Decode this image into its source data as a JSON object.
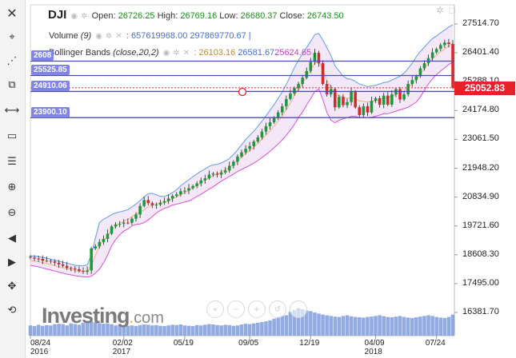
{
  "symbol": "DJI",
  "ohlc": {
    "open_label": "Open:",
    "open": "26726.25",
    "high_label": "High:",
    "high": "26769.16",
    "low_label": "Low:",
    "low": "26680.37",
    "close_label": "Close:",
    "close": "26743.50"
  },
  "volume": {
    "name": "Volume",
    "param": "(9)",
    "values": ": 657619968.00 297869770.67 |"
  },
  "bollinger": {
    "name": "Bollinger Bands",
    "params": "(close,20,2)",
    "v1": ": 26103.16",
    "v2": "26581.67",
    "v3": "25624.65",
    "sep": "|"
  },
  "hlines": [
    {
      "label": "2608",
      "value": 26081
    },
    {
      "label": "25525.85",
      "value": 25525.85
    },
    {
      "label": "24910.06",
      "value": 24910.06
    },
    {
      "label": "23900.10",
      "value": 23900.1
    }
  ],
  "current_price": "25052.83",
  "watermark": {
    "main": "Investing",
    "dot": ".",
    "suffix": "com"
  },
  "colors": {
    "upper_band": "#5b9bf0",
    "lower_band": "#d94fd9",
    "band_fill": "#ecd9f3",
    "hline": "#4b4fa8",
    "price_tag": "#e8202a",
    "bull": "#1a9a3a",
    "bear": "#d62a2a",
    "volume": "#6e8ed8"
  },
  "icons": [
    "close-icon",
    "crosshair-icon",
    "line-tools-icon",
    "pattern-icon",
    "measure-icon",
    "rectangle-icon",
    "fib-icon",
    "zoom-in-icon",
    "zoom-out-icon",
    "back-icon",
    "forward-icon",
    "pan-icon",
    "reset-icon"
  ],
  "chart_data": {
    "type": "candlestick",
    "ylim": [
      16000,
      27900
    ],
    "yticks": [
      "27514.70",
      "26401.40",
      "25288.10",
      "24174.80",
      "23061.50",
      "21948.20",
      "20834.90",
      "19721.60",
      "18608.30",
      "17495.00",
      "16381.70"
    ],
    "xticks": [
      {
        "label": "08/24",
        "sub": "2016",
        "i": 0
      },
      {
        "label": "02/02",
        "sub": "2017",
        "i": 23
      },
      {
        "label": "05/19",
        "sub": "",
        "i": 38
      },
      {
        "label": "09/05",
        "sub": "",
        "i": 54
      },
      {
        "label": "12/19",
        "sub": "",
        "i": 69
      },
      {
        "label": "04/09",
        "sub": "2018",
        "i": 85
      },
      {
        "label": "07/24",
        "sub": "",
        "i": 100
      }
    ],
    "series": [
      {
        "name": "Price",
        "values": [
          18500,
          18460,
          18450,
          18380,
          18380,
          18350,
          18300,
          18240,
          18180,
          18100,
          18080,
          18050,
          17980,
          17950,
          18000,
          18850,
          18930,
          19100,
          19220,
          19420,
          19700,
          19780,
          19800,
          19850,
          19840,
          20000,
          20160,
          20490,
          20720,
          20600,
          20520,
          20540,
          20620,
          20680,
          20780,
          20880,
          20940,
          21060,
          21080,
          21180,
          21260,
          21360,
          21480,
          21560,
          21700,
          21740,
          21700,
          21780,
          21860,
          22040,
          22200,
          22400,
          22560,
          22700,
          22800,
          22980,
          23140,
          23360,
          23570,
          23720,
          23900,
          24100,
          24340,
          24620,
          24830,
          25040,
          25200,
          25440,
          25700,
          26050,
          26400,
          26000,
          25200,
          24800,
          25000,
          24300,
          24700,
          24380,
          24500,
          24900,
          24300,
          24000,
          24340,
          24100,
          24550,
          24650,
          24400,
          24750,
          24400,
          24800,
          25000,
          24600,
          24800,
          25200,
          25350,
          25500,
          25800,
          26000,
          26200,
          26420,
          26550,
          26700,
          26800,
          26743,
          25053
        ]
      }
    ],
    "upper_band": [
      18570,
      18560,
      18540,
      18500,
      18480,
      18440,
      18400,
      18360,
      18320,
      18280,
      18240,
      18200,
      18190,
      18180,
      18220,
      18600,
      19250,
      19850,
      19980,
      20060,
      20160,
      20220,
      20260,
      20300,
      20350,
      20450,
      20570,
      20700,
      20840,
      20960,
      20980,
      20920,
      20860,
      20860,
      20920,
      21010,
      21120,
      21270,
      21390,
      21500,
      21620,
      21730,
      21830,
      21920,
      22020,
      22080,
      22100,
      22150,
      22230,
      22320,
      22480,
      22650,
      22860,
      23050,
      23220,
      23380,
      23560,
      23760,
      23970,
      24180,
      24400,
      24640,
      24900,
      25180,
      25500,
      25830,
      26120,
      26360,
      26600,
      26840,
      27100,
      27150,
      26900,
      26600,
      26300,
      25900,
      25700,
      25500,
      25400,
      25380,
      25300,
      25200,
      25150,
      25100,
      25120,
      25150,
      25200,
      25250,
      25280,
      25350,
      25420,
      25500,
      25620,
      25800,
      26000,
      26250,
      26450,
      26620,
      26800,
      26950,
      27050,
      27180,
      27280,
      27400,
      27480
    ],
    "lower_band": [
      18200,
      18170,
      18140,
      18100,
      18060,
      18020,
      17980,
      17940,
      17900,
      17860,
      17830,
      17800,
      17780,
      17760,
      17750,
      17780,
      17900,
      18050,
      18300,
      18600,
      18950,
      19200,
      19380,
      19520,
      19600,
      19720,
      19780,
      19800,
      19850,
      19950,
      20080,
      20220,
      20320,
      20400,
      20450,
      20530,
      20560,
      20600,
      20640,
      20680,
      20760,
      20860,
      20940,
      21040,
      21140,
      21230,
      21340,
      21450,
      21540,
      21630,
      21720,
      21820,
      21900,
      21980,
      22060,
      22140,
      22240,
      22360,
      22480,
      22600,
      22740,
      22880,
      23040,
      23220,
      23420,
      23640,
      23900,
      24120,
      24380,
      24640,
      24900,
      25000,
      24600,
      24100,
      23800,
      23700,
      23800,
      23850,
      23900,
      23950,
      23950,
      23900,
      23900,
      23900,
      23920,
      23950,
      24000,
      24050,
      24050,
      24100,
      24150,
      24200,
      24250,
      24300,
      24400,
      24500,
      24700,
      24950,
      25200,
      25400,
      25560,
      25700,
      25820,
      25950,
      26050
    ],
    "volume": [
      30,
      28,
      32,
      29,
      31,
      30,
      33,
      35,
      34,
      30,
      36,
      34,
      32,
      38,
      40,
      42,
      39,
      37,
      35,
      36,
      33,
      30,
      32,
      31,
      29,
      30,
      28,
      31,
      33,
      32,
      30,
      31,
      29,
      28,
      30,
      32,
      31,
      33,
      30,
      29,
      28,
      31,
      30,
      32,
      34,
      33,
      31,
      30,
      32,
      31,
      29,
      30,
      33,
      35,
      34,
      36,
      38,
      40,
      42,
      45,
      50,
      55,
      58,
      60,
      70,
      75,
      80,
      78,
      74,
      72,
      68,
      65,
      62,
      60,
      58,
      56,
      55,
      58,
      60,
      57,
      55,
      54,
      53,
      55,
      56,
      58,
      60,
      57,
      55,
      54,
      56,
      58,
      55,
      53,
      52,
      54,
      56,
      58,
      60,
      58,
      55,
      53,
      52,
      55,
      62
    ]
  }
}
